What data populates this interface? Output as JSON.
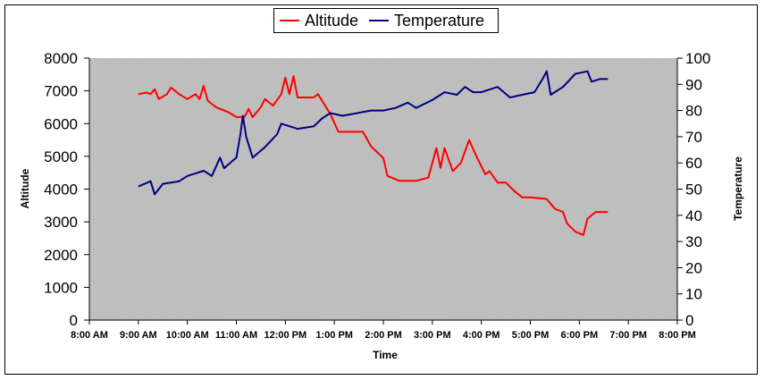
{
  "chart_data": {
    "type": "line",
    "xlabel": "Time",
    "ylabel": "Altitude",
    "y2label": "Temperature",
    "x_tick_labels": [
      "8:00 AM",
      "9:00 AM",
      "10:00 AM",
      "11:00 AM",
      "12:00 PM",
      "1:00 PM",
      "2:00 PM",
      "3:00 PM",
      "4:00 PM",
      "5:00 PM",
      "6:00 PM",
      "7:00 PM",
      "8:00 PM"
    ],
    "xlim": [
      "8:00 AM",
      "8:00 PM"
    ],
    "ylim": [
      0,
      8000
    ],
    "y_ticks": [
      0,
      1000,
      2000,
      3000,
      4000,
      5000,
      6000,
      7000,
      8000
    ],
    "y2lim": [
      0,
      100
    ],
    "y2_ticks": [
      0,
      10,
      20,
      30,
      40,
      50,
      60,
      70,
      80,
      90,
      100
    ],
    "grid": false,
    "legend_position": "top-center",
    "plot_background": "#c0c0c0",
    "series": [
      {
        "name": "Altitude",
        "axis": "left",
        "color": "#ff0000",
        "points": [
          [
            "9:00 AM",
            6900
          ],
          [
            "9:10 AM",
            6950
          ],
          [
            "9:15 AM",
            6900
          ],
          [
            "9:20 AM",
            7050
          ],
          [
            "9:25 AM",
            6750
          ],
          [
            "9:35 AM",
            6900
          ],
          [
            "9:40 AM",
            7100
          ],
          [
            "9:50 AM",
            6900
          ],
          [
            "10:00 AM",
            6750
          ],
          [
            "10:10 AM",
            6900
          ],
          [
            "10:15 AM",
            6750
          ],
          [
            "10:20 AM",
            7150
          ],
          [
            "10:25 AM",
            6700
          ],
          [
            "10:35 AM",
            6500
          ],
          [
            "10:50 AM",
            6350
          ],
          [
            "11:00 AM",
            6200
          ],
          [
            "11:10 AM",
            6200
          ],
          [
            "11:15 AM",
            6450
          ],
          [
            "11:20 AM",
            6200
          ],
          [
            "11:30 AM",
            6500
          ],
          [
            "11:35 AM",
            6750
          ],
          [
            "11:45 AM",
            6550
          ],
          [
            "11:55 AM",
            6900
          ],
          [
            "12:00 PM",
            7400
          ],
          [
            "12:05 PM",
            6900
          ],
          [
            "12:10 PM",
            7450
          ],
          [
            "12:15 PM",
            6800
          ],
          [
            "12:35 PM",
            6800
          ],
          [
            "12:40 PM",
            6900
          ],
          [
            "12:55 PM",
            6300
          ],
          [
            "1:05 PM",
            5750
          ],
          [
            "1:35 PM",
            5750
          ],
          [
            "1:45 PM",
            5300
          ],
          [
            "2:00 PM",
            4950
          ],
          [
            "2:05 PM",
            4400
          ],
          [
            "2:20 PM",
            4250
          ],
          [
            "2:40 PM",
            4250
          ],
          [
            "2:55 PM",
            4350
          ],
          [
            "3:05 PM",
            5250
          ],
          [
            "3:10 PM",
            4650
          ],
          [
            "3:15 PM",
            5250
          ],
          [
            "3:25 PM",
            4550
          ],
          [
            "3:35 PM",
            4800
          ],
          [
            "3:45 PM",
            5500
          ],
          [
            "3:55 PM",
            4950
          ],
          [
            "4:05 PM",
            4450
          ],
          [
            "4:10 PM",
            4550
          ],
          [
            "4:20 PM",
            4200
          ],
          [
            "4:30 PM",
            4200
          ],
          [
            "4:40 PM",
            3950
          ],
          [
            "4:50 PM",
            3750
          ],
          [
            "5:00 PM",
            3750
          ],
          [
            "5:20 PM",
            3700
          ],
          [
            "5:30 PM",
            3400
          ],
          [
            "5:40 PM",
            3300
          ],
          [
            "5:45 PM",
            2950
          ],
          [
            "5:55 PM",
            2700
          ],
          [
            "6:05 PM",
            2600
          ],
          [
            "6:10 PM",
            3100
          ],
          [
            "6:20 PM",
            3300
          ],
          [
            "6:35 PM",
            3300
          ]
        ]
      },
      {
        "name": "Temperature",
        "axis": "right",
        "color": "#000080",
        "points": [
          [
            "9:00 AM",
            51
          ],
          [
            "9:15 AM",
            53
          ],
          [
            "9:20 AM",
            48
          ],
          [
            "9:30 AM",
            52
          ],
          [
            "9:50 AM",
            53
          ],
          [
            "10:00 AM",
            55
          ],
          [
            "10:10 AM",
            56
          ],
          [
            "10:20 AM",
            57
          ],
          [
            "10:30 AM",
            55
          ],
          [
            "10:40 AM",
            62
          ],
          [
            "10:45 AM",
            58
          ],
          [
            "11:00 AM",
            62
          ],
          [
            "11:05 AM",
            71
          ],
          [
            "11:08 AM",
            78
          ],
          [
            "11:12 AM",
            70
          ],
          [
            "11:20 AM",
            62
          ],
          [
            "11:35 AM",
            66
          ],
          [
            "11:50 AM",
            71
          ],
          [
            "11:55 AM",
            75
          ],
          [
            "12:15 PM",
            73
          ],
          [
            "12:35 PM",
            74
          ],
          [
            "12:45 PM",
            77
          ],
          [
            "12:55 PM",
            79
          ],
          [
            "1:10 PM",
            78
          ],
          [
            "1:45 PM",
            80
          ],
          [
            "2:00 PM",
            80
          ],
          [
            "2:15 PM",
            81
          ],
          [
            "2:30 PM",
            83
          ],
          [
            "2:40 PM",
            81
          ],
          [
            "3:00 PM",
            84
          ],
          [
            "3:15 PM",
            87
          ],
          [
            "3:30 PM",
            86
          ],
          [
            "3:40 PM",
            89
          ],
          [
            "3:50 PM",
            87
          ],
          [
            "4:00 PM",
            87
          ],
          [
            "4:20 PM",
            89
          ],
          [
            "4:35 PM",
            85
          ],
          [
            "4:50 PM",
            86
          ],
          [
            "5:05 PM",
            87
          ],
          [
            "5:15 PM",
            92
          ],
          [
            "5:20 PM",
            95
          ],
          [
            "5:25 PM",
            86
          ],
          [
            "5:40 PM",
            89
          ],
          [
            "5:55 PM",
            94
          ],
          [
            "6:10 PM",
            95
          ],
          [
            "6:15 PM",
            91
          ],
          [
            "6:25 PM",
            92
          ],
          [
            "6:35 PM",
            92
          ]
        ]
      }
    ]
  }
}
